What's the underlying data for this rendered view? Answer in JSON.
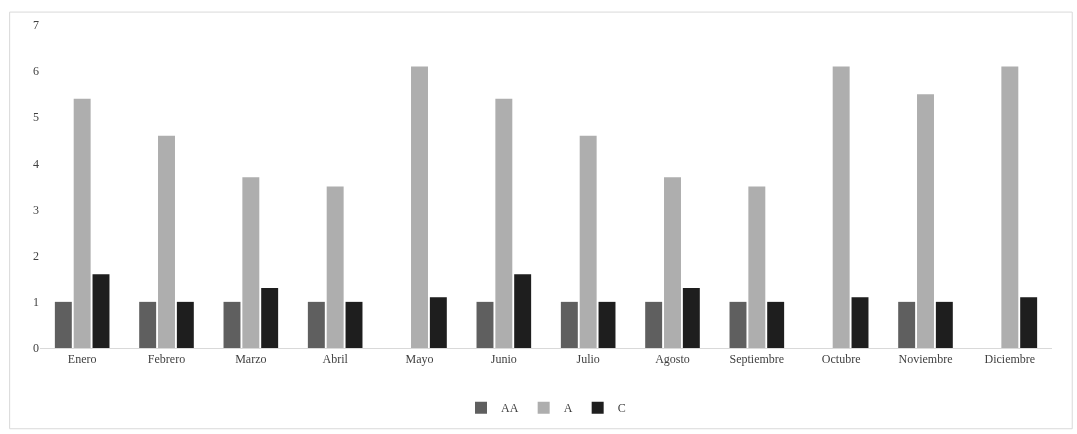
{
  "chart_data": {
    "type": "bar",
    "categories": [
      "Enero",
      "Febrero",
      "Marzo",
      "Abril",
      "Mayo",
      "Junio",
      "Julio",
      "Agosto",
      "Septiembre",
      "Octubre",
      "Noviembre",
      "Diciembre"
    ],
    "series": [
      {
        "name": "AA",
        "color": "#5f5f5f",
        "values": [
          1,
          1,
          1,
          1,
          null,
          1,
          1,
          1,
          1,
          null,
          1,
          null
        ]
      },
      {
        "name": "A",
        "color": "#aeaeae",
        "values": [
          5.4,
          4.6,
          3.7,
          3.5,
          6.1,
          5.4,
          4.6,
          3.7,
          3.5,
          6.1,
          5.5,
          6.1
        ]
      },
      {
        "name": "C",
        "color": "#1e1e1e",
        "values": [
          1.6,
          1,
          1.3,
          1,
          1.1,
          1.6,
          1,
          1.3,
          1,
          1.1,
          1,
          1.1
        ]
      }
    ],
    "ylim": [
      0,
      7
    ],
    "yticks": [
      0,
      1,
      2,
      3,
      4,
      5,
      6,
      7
    ],
    "grid": false,
    "legend": "bottom"
  }
}
